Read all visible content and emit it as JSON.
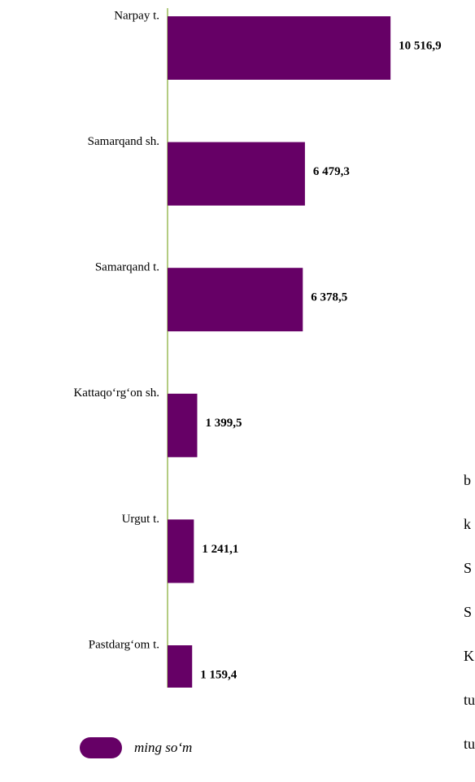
{
  "chart_data": {
    "type": "bar",
    "orientation": "horizontal",
    "categories": [
      "Narpay t.",
      "Samarqand sh.",
      "Samarqand t.",
      "Kattaqo‘rg‘on sh.",
      "Urgut t.",
      "Pastdarg‘om t."
    ],
    "series": [
      {
        "name": "ming so‘m",
        "color": "#660066",
        "values": [
          10516.9,
          6479.3,
          6378.5,
          1399.5,
          1241.1,
          1159.4
        ],
        "value_labels": [
          "10 516,9",
          "6 479,3",
          "6 378,5",
          "1 399,5",
          "1 241,1",
          "1 159,4"
        ]
      }
    ],
    "xlim": [
      0,
      14500
    ],
    "legend": "bottom-left"
  },
  "side_text": [
    "b",
    "k",
    "S",
    "S",
    "K",
    "tu",
    "tu"
  ]
}
